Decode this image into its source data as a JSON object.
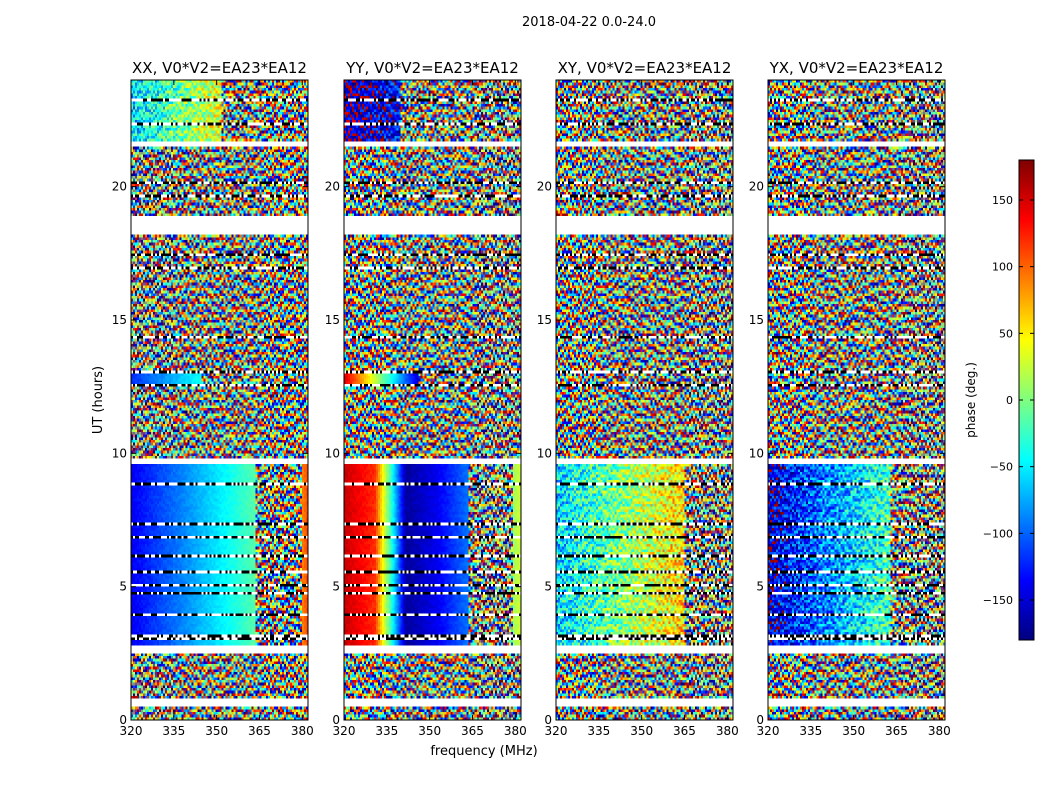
{
  "figure": {
    "suptitle": "2018-04-22 0.0-24.0",
    "shared_xlabel": "frequency (MHz)",
    "shared_ylabel": "UT (hours)"
  },
  "colorbar": {
    "label": "phase (deg.)",
    "range": [
      -180,
      180
    ],
    "ticks": [
      -150,
      -100,
      -50,
      0,
      50,
      100,
      150
    ],
    "tick_labels": [
      "−150",
      "−100",
      "−50",
      "0",
      "50",
      "100",
      "150"
    ],
    "colormap": "jet",
    "colormap_stops": [
      "#00007f",
      "#0000ff",
      "#007fff",
      "#00ffff",
      "#7fff7f",
      "#ffff00",
      "#ff7f00",
      "#ff0000",
      "#7f0000"
    ]
  },
  "chart_data": [
    {
      "type": "heatmap",
      "title": "XX, V0*V2=EA23*EA12",
      "xlabel": "frequency (MHz)",
      "ylabel": "UT (hours)",
      "xlim": [
        320,
        382
      ],
      "ylim": [
        0,
        24
      ],
      "xticks": [
        320,
        335,
        350,
        365,
        380
      ],
      "yticks": [
        0,
        5,
        10,
        15,
        20
      ],
      "value": "phase (deg.)",
      "structured_regions": [
        {
          "ut": [
            2.8,
            9.6
          ],
          "freq": [
            320,
            363.5
          ],
          "phase_deg": [
            -140,
            -15
          ],
          "trend": "increasing with frequency"
        },
        {
          "ut": [
            2.8,
            9.6
          ],
          "freq": [
            380,
            382
          ],
          "phase_deg": [
            90,
            110
          ]
        },
        {
          "ut": [
            12.6,
            13.0
          ],
          "freq": [
            320,
            345
          ],
          "phase_deg": [
            -120,
            -40
          ]
        },
        {
          "ut": [
            21.5,
            24.0
          ],
          "freq": [
            320,
            352
          ],
          "phase_deg": [
            -60,
            40
          ],
          "note": "partly noisy"
        }
      ],
      "noise_ut_ranges": [
        [
          0,
          2.8
        ],
        [
          9.6,
          12.6
        ],
        [
          13.0,
          21.5
        ]
      ]
    },
    {
      "type": "heatmap",
      "title": "YY, V0*V2=EA23*EA12",
      "xlabel": "frequency (MHz)",
      "ylabel": "",
      "xlim": [
        320,
        382
      ],
      "ylim": [
        0,
        24
      ],
      "xticks": [
        320,
        335,
        350,
        365,
        380
      ],
      "yticks": [
        0,
        5,
        10,
        15,
        20
      ],
      "value": "phase (deg.)",
      "structured_regions": [
        {
          "ut": [
            2.8,
            9.6
          ],
          "freq": [
            320,
            363.5
          ],
          "phase_deg": [
            155,
            120,
            -170,
            -140,
            -95
          ],
          "trend": "wraps from red to blue near 336 MHz"
        },
        {
          "ut": [
            2.8,
            9.6
          ],
          "freq": [
            379,
            382
          ],
          "phase_deg": [
            10,
            30
          ]
        },
        {
          "ut": [
            12.6,
            13.0
          ],
          "freq": [
            320,
            346
          ],
          "phase_deg": [
            150,
            -150
          ]
        },
        {
          "ut": [
            21.5,
            24.0
          ],
          "freq": [
            320,
            340
          ],
          "phase_deg": [
            -170,
            -130
          ],
          "note": "partly noisy"
        }
      ],
      "noise_ut_ranges": [
        [
          0,
          2.8
        ],
        [
          9.6,
          12.6
        ],
        [
          13.0,
          21.5
        ]
      ]
    },
    {
      "type": "heatmap",
      "title": "XY, V0*V2=EA23*EA12",
      "xlabel": "frequency (MHz)",
      "ylabel": "",
      "xlim": [
        320,
        382
      ],
      "ylim": [
        0,
        24
      ],
      "xticks": [
        320,
        335,
        350,
        365,
        380
      ],
      "yticks": [
        0,
        5,
        10,
        15,
        20
      ],
      "value": "phase (deg.)",
      "structured_regions": [
        {
          "ut": [
            2.8,
            9.6
          ],
          "freq": [
            320,
            365
          ],
          "phase_deg": [
            -60,
            60
          ],
          "trend": "noisy, increasing with frequency"
        }
      ],
      "noise_ut_ranges": [
        [
          0,
          2.8
        ],
        [
          9.6,
          24.0
        ]
      ]
    },
    {
      "type": "heatmap",
      "title": "YX, V0*V2=EA23*EA12",
      "xlabel": "frequency (MHz)",
      "ylabel": "",
      "xlim": [
        320,
        382
      ],
      "ylim": [
        0,
        24
      ],
      "xticks": [
        320,
        335,
        350,
        365,
        380
      ],
      "yticks": [
        0,
        5,
        10,
        15,
        20
      ],
      "value": "phase (deg.)",
      "structured_regions": [
        {
          "ut": [
            2.8,
            9.6
          ],
          "freq": [
            320,
            363
          ],
          "phase_deg": [
            -150,
            -20
          ],
          "trend": "noisy, increasing with frequency"
        }
      ],
      "noise_ut_ranges": [
        [
          0,
          2.8
        ],
        [
          9.6,
          24.0
        ]
      ]
    }
  ]
}
